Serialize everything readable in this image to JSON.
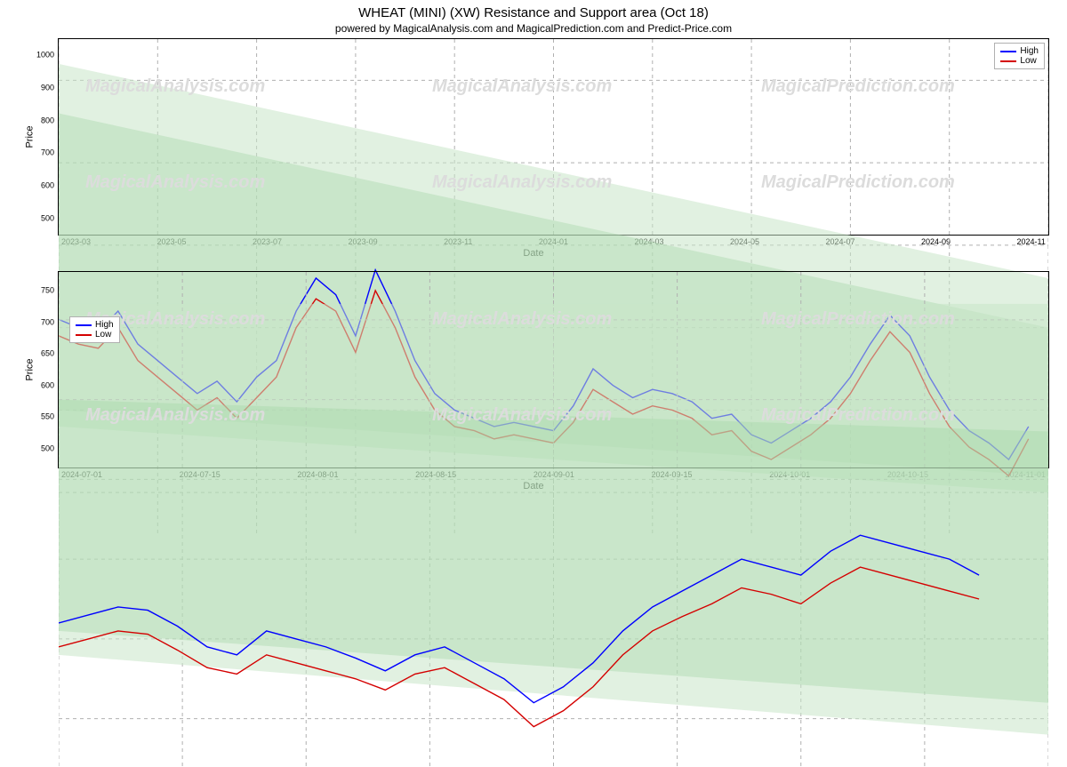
{
  "title": "WHEAT (MINI) (XW) Resistance and Support area (Oct 18)",
  "title_fontsize": 15,
  "title_color": "#000000",
  "subtitle": "powered by MagicalAnalysis.com and MagicalPrediction.com and Predict-Price.com",
  "subtitle_fontsize": 12,
  "subtitle_color": "#000000",
  "background_color": "#ffffff",
  "watermarks": [
    "MagicalAnalysis.com",
    "MagicalPrediction.com"
  ],
  "watermark_color": "#dcdcdc",
  "chart_top": {
    "type": "line",
    "xlabel": "Date",
    "ylabel": "Price",
    "label_fontsize": 11,
    "ylim": [
      450,
      1050
    ],
    "yticks": [
      1000,
      900,
      800,
      700,
      600,
      500
    ],
    "xticks": [
      "2023-03",
      "2023-05",
      "2023-07",
      "2023-09",
      "2023-11",
      "2024-01",
      "2024-03",
      "2024-05",
      "2024-07",
      "2024-09",
      "2024-11"
    ],
    "xrange": [
      0,
      100
    ],
    "grid_color": "#b0b0b0",
    "border_color": "#000000",
    "legend_position": "top-right",
    "bands": [
      {
        "from_y0": 580,
        "from_y1": 1020,
        "to_y0": 500,
        "to_y1": 760,
        "color": "#c8e6c9",
        "opacity": 0.55
      },
      {
        "from_y0": 600,
        "from_y1": 960,
        "to_y0": 520,
        "to_y1": 700,
        "color": "#a5d6a7",
        "opacity": 0.4
      }
    ],
    "series": [
      {
        "name": "High",
        "color": "#0000ff",
        "width": 1.4,
        "x": [
          0,
          2,
          4,
          6,
          8,
          10,
          12,
          14,
          16,
          18,
          20,
          22,
          24,
          26,
          28,
          30,
          32,
          34,
          36,
          38,
          40,
          42,
          44,
          46,
          48,
          50,
          52,
          54,
          56,
          58,
          60,
          62,
          64,
          66,
          68,
          70,
          72,
          74,
          76,
          78,
          80,
          82,
          84,
          86,
          88,
          90,
          92,
          94,
          96,
          98
        ],
        "y": [
          710,
          700,
          695,
          720,
          680,
          660,
          640,
          620,
          635,
          610,
          640,
          660,
          720,
          760,
          740,
          690,
          770,
          720,
          660,
          620,
          600,
          590,
          580,
          585,
          580,
          575,
          605,
          650,
          630,
          615,
          625,
          620,
          610,
          590,
          595,
          570,
          560,
          575,
          590,
          610,
          640,
          680,
          715,
          690,
          640,
          600,
          575,
          560,
          540,
          580
        ]
      },
      {
        "name": "Low",
        "color": "#d40000",
        "width": 1.4,
        "x": [
          0,
          2,
          4,
          6,
          8,
          10,
          12,
          14,
          16,
          18,
          20,
          22,
          24,
          26,
          28,
          30,
          32,
          34,
          36,
          38,
          40,
          42,
          44,
          46,
          48,
          50,
          52,
          54,
          56,
          58,
          60,
          62,
          64,
          66,
          68,
          70,
          72,
          74,
          76,
          78,
          80,
          82,
          84,
          86,
          88,
          90,
          92,
          94,
          96,
          98
        ],
        "y": [
          690,
          680,
          675,
          700,
          660,
          640,
          620,
          600,
          615,
          590,
          615,
          640,
          700,
          735,
          720,
          670,
          745,
          700,
          640,
          600,
          580,
          575,
          565,
          570,
          565,
          560,
          585,
          625,
          610,
          595,
          605,
          600,
          590,
          570,
          575,
          550,
          540,
          555,
          570,
          590,
          620,
          660,
          695,
          670,
          620,
          580,
          555,
          540,
          520,
          565
        ]
      }
    ]
  },
  "chart_bottom": {
    "type": "line",
    "xlabel": "Date",
    "ylabel": "Price",
    "label_fontsize": 11,
    "ylim": [
      470,
      780
    ],
    "yticks": [
      750,
      700,
      650,
      600,
      550,
      500
    ],
    "xticks": [
      "2024-07-01",
      "2024-07-15",
      "2024-08-01",
      "2024-08-15",
      "2024-09-01",
      "2024-09-15",
      "2024-10-01",
      "2024-10-15",
      "2024-11-01"
    ],
    "xrange": [
      0,
      100
    ],
    "grid_color": "#b0b0b0",
    "border_color": "#000000",
    "legend_position": "top-left",
    "bands": [
      {
        "from_y0": 540,
        "from_y1": 760,
        "to_y0": 490,
        "to_y1": 760,
        "color": "#c8e6c9",
        "opacity": 0.55
      },
      {
        "from_y0": 555,
        "from_y1": 700,
        "to_y0": 510,
        "to_y1": 680,
        "color": "#a5d6a7",
        "opacity": 0.4
      }
    ],
    "series": [
      {
        "name": "High",
        "color": "#0000ff",
        "width": 1.4,
        "x": [
          0,
          3,
          6,
          9,
          12,
          15,
          18,
          21,
          24,
          27,
          30,
          33,
          36,
          39,
          42,
          45,
          48,
          51,
          54,
          57,
          60,
          63,
          66,
          69,
          72,
          75,
          78,
          81,
          84,
          87,
          90,
          93
        ],
        "y": [
          560,
          565,
          570,
          568,
          558,
          545,
          540,
          555,
          550,
          545,
          538,
          530,
          540,
          545,
          535,
          525,
          510,
          520,
          535,
          555,
          570,
          580,
          590,
          600,
          595,
          590,
          605,
          615,
          610,
          605,
          600,
          590
        ]
      },
      {
        "name": "Low",
        "color": "#d40000",
        "width": 1.4,
        "x": [
          0,
          3,
          6,
          9,
          12,
          15,
          18,
          21,
          24,
          27,
          30,
          33,
          36,
          39,
          42,
          45,
          48,
          51,
          54,
          57,
          60,
          63,
          66,
          69,
          72,
          75,
          78,
          81,
          84,
          87,
          90,
          93
        ],
        "y": [
          545,
          550,
          555,
          553,
          543,
          532,
          528,
          540,
          535,
          530,
          525,
          518,
          528,
          532,
          522,
          512,
          495,
          505,
          520,
          540,
          555,
          564,
          572,
          582,
          578,
          572,
          585,
          595,
          590,
          585,
          580,
          575
        ]
      }
    ]
  },
  "legend_labels": {
    "high": "High",
    "low": "Low"
  }
}
